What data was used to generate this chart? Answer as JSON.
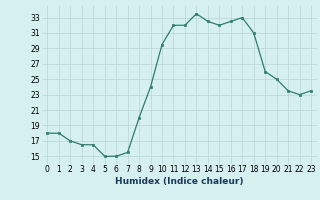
{
  "x": [
    0,
    1,
    2,
    3,
    4,
    5,
    6,
    7,
    8,
    9,
    10,
    11,
    12,
    13,
    14,
    15,
    16,
    17,
    18,
    19,
    20,
    21,
    22,
    23
  ],
  "y": [
    18,
    18,
    17,
    16.5,
    16.5,
    15,
    15,
    15.5,
    20,
    24,
    29.5,
    32,
    32,
    33.5,
    32.5,
    32,
    32.5,
    33,
    31,
    26,
    25,
    23.5,
    23,
    23.5
  ],
  "line_color": "#2e7d6e",
  "marker_color": "#2e7d6e",
  "bg_color": "#d6f0f0",
  "grid_color": "#b8d4d4",
  "xlabel": "Humidex (Indice chaleur)",
  "xlim": [
    -0.5,
    23.5
  ],
  "ylim": [
    14,
    34.5
  ],
  "yticks": [
    15,
    17,
    19,
    21,
    23,
    25,
    27,
    29,
    31,
    33
  ],
  "xticks": [
    0,
    1,
    2,
    3,
    4,
    5,
    6,
    7,
    8,
    9,
    10,
    11,
    12,
    13,
    14,
    15,
    16,
    17,
    18,
    19,
    20,
    21,
    22,
    23
  ],
  "tick_fontsize": 5.5,
  "xlabel_fontsize": 6.5
}
